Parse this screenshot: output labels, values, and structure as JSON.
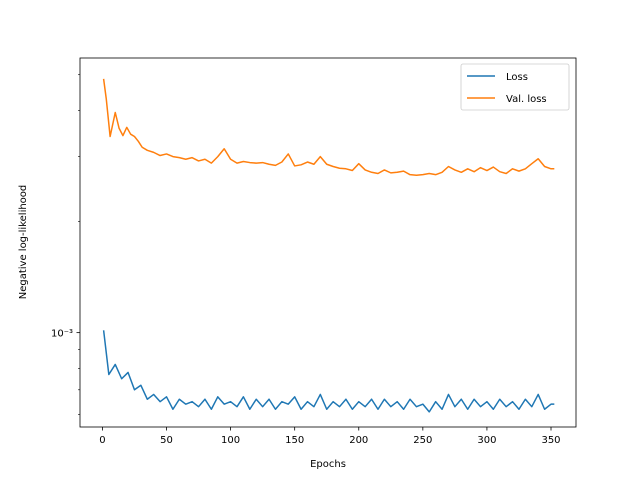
{
  "chart_data": {
    "type": "line",
    "title": "",
    "xlabel": "Epochs",
    "ylabel": "Negative log-likelihood",
    "xlim": [
      -17.5,
      369.5
    ],
    "ylim": [
      0.000555,
      0.00555
    ],
    "yscale": "log",
    "grid": false,
    "legend_position": "top-right",
    "xticks": [
      0,
      50,
      100,
      150,
      200,
      250,
      300,
      350
    ],
    "xtick_labels": [
      "0",
      "50",
      "100",
      "150",
      "200",
      "250",
      "300",
      "350"
    ],
    "yticks": [
      0.001
    ],
    "ytick_labels": [
      "10⁻³"
    ],
    "series": [
      {
        "name": "Loss",
        "color": "#1f77b4",
        "x": [
          1,
          5,
          10,
          15,
          20,
          25,
          30,
          35,
          40,
          45,
          50,
          55,
          60,
          65,
          70,
          75,
          80,
          85,
          90,
          95,
          100,
          105,
          110,
          115,
          120,
          125,
          130,
          135,
          140,
          145,
          150,
          155,
          160,
          165,
          170,
          175,
          180,
          185,
          190,
          195,
          200,
          205,
          210,
          215,
          220,
          225,
          230,
          235,
          240,
          245,
          250,
          255,
          260,
          265,
          270,
          275,
          280,
          285,
          290,
          295,
          300,
          305,
          310,
          315,
          320,
          325,
          330,
          335,
          340,
          345,
          350,
          352
        ],
        "y": [
          0.00101,
          0.00077,
          0.00082,
          0.00075,
          0.00078,
          0.0007,
          0.00072,
          0.00066,
          0.00068,
          0.00065,
          0.00067,
          0.00062,
          0.00066,
          0.00064,
          0.00065,
          0.00063,
          0.00066,
          0.00062,
          0.00067,
          0.00064,
          0.00065,
          0.00063,
          0.00067,
          0.00062,
          0.00066,
          0.00063,
          0.00066,
          0.00062,
          0.00065,
          0.00064,
          0.00067,
          0.00062,
          0.00065,
          0.00063,
          0.00068,
          0.00062,
          0.00065,
          0.00063,
          0.00066,
          0.00062,
          0.00065,
          0.00063,
          0.00066,
          0.00062,
          0.00066,
          0.00063,
          0.00065,
          0.00062,
          0.00066,
          0.00063,
          0.00064,
          0.00061,
          0.00065,
          0.00062,
          0.00068,
          0.00063,
          0.00066,
          0.00062,
          0.00066,
          0.00063,
          0.00065,
          0.00062,
          0.00066,
          0.00063,
          0.00065,
          0.00062,
          0.00066,
          0.00063,
          0.00068,
          0.00062,
          0.00064,
          0.00064
        ]
      },
      {
        "name": "Val. loss",
        "color": "#ff7f0e",
        "x": [
          1,
          3,
          6,
          10,
          13,
          16,
          19,
          22,
          25,
          28,
          31,
          35,
          40,
          45,
          50,
          55,
          60,
          65,
          70,
          75,
          80,
          85,
          90,
          95,
          100,
          105,
          110,
          115,
          120,
          125,
          130,
          135,
          140,
          145,
          150,
          155,
          160,
          165,
          170,
          175,
          180,
          185,
          190,
          195,
          200,
          205,
          210,
          215,
          220,
          225,
          230,
          235,
          240,
          245,
          250,
          255,
          260,
          265,
          270,
          275,
          280,
          285,
          290,
          295,
          300,
          305,
          310,
          315,
          320,
          325,
          330,
          335,
          340,
          345,
          350,
          352
        ],
        "y": [
          0.00485,
          0.0043,
          0.0034,
          0.00395,
          0.00358,
          0.00342,
          0.0036,
          0.00345,
          0.0034,
          0.0033,
          0.00318,
          0.00312,
          0.00308,
          0.00302,
          0.00305,
          0.003,
          0.00298,
          0.00295,
          0.00298,
          0.00292,
          0.00295,
          0.00288,
          0.003,
          0.00315,
          0.00295,
          0.00288,
          0.00291,
          0.00289,
          0.00288,
          0.00289,
          0.00286,
          0.00284,
          0.0029,
          0.00305,
          0.00283,
          0.00285,
          0.0029,
          0.00286,
          0.003,
          0.00286,
          0.00282,
          0.00279,
          0.00278,
          0.00275,
          0.00287,
          0.00276,
          0.00272,
          0.0027,
          0.00276,
          0.00271,
          0.00272,
          0.00274,
          0.00268,
          0.00267,
          0.00268,
          0.0027,
          0.00268,
          0.00272,
          0.00282,
          0.00276,
          0.00272,
          0.00278,
          0.00273,
          0.0028,
          0.00275,
          0.00281,
          0.00273,
          0.0027,
          0.00278,
          0.00274,
          0.00278,
          0.00287,
          0.00296,
          0.00282,
          0.00278,
          0.00278
        ]
      }
    ]
  }
}
